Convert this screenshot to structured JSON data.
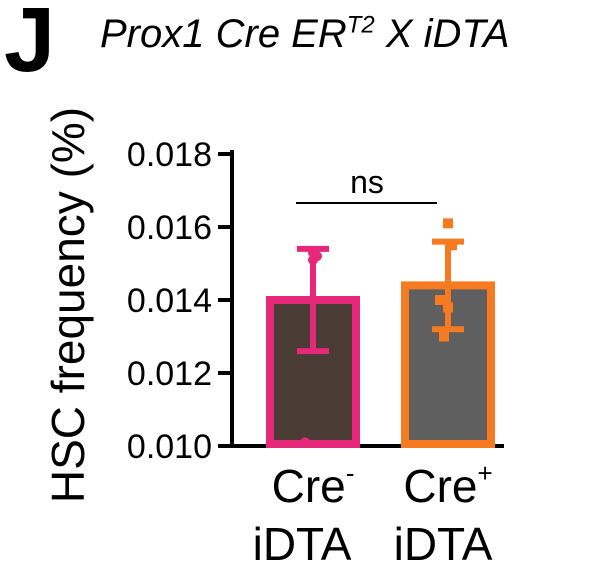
{
  "panel_letter": "J",
  "title": {
    "main": "Prox1 Cre ER",
    "superscript": "T2",
    "rest": " X iDTA"
  },
  "chart_data": {
    "type": "bar",
    "ylabel": "HSC frequency (%)",
    "ylim": [
      0.01,
      0.018
    ],
    "yticks": [
      "0.010",
      "0.012",
      "0.014",
      "0.016",
      "0.018"
    ],
    "grid": false,
    "categories": [
      {
        "line1": "Cre",
        "sup": "-",
        "line2": "iDTA"
      },
      {
        "line1": "Cre",
        "sup": "+",
        "line2": "iDTA"
      }
    ],
    "bars": [
      {
        "mean": 0.014,
        "err_low": 0.0126,
        "err_high": 0.0154,
        "points": [
          0.0153,
          0.0152,
          0.0101,
          0.0151
        ],
        "edge_color": "#e6287b",
        "fill_color": "#4a3b35"
      },
      {
        "mean": 0.0144,
        "err_low": 0.0132,
        "err_high": 0.0156,
        "points": [
          0.0161,
          0.0155,
          0.014,
          0.0138,
          0.013
        ],
        "edge_color": "#f57a20",
        "fill_color": "#5f5f5f"
      }
    ],
    "annotation": "ns"
  }
}
